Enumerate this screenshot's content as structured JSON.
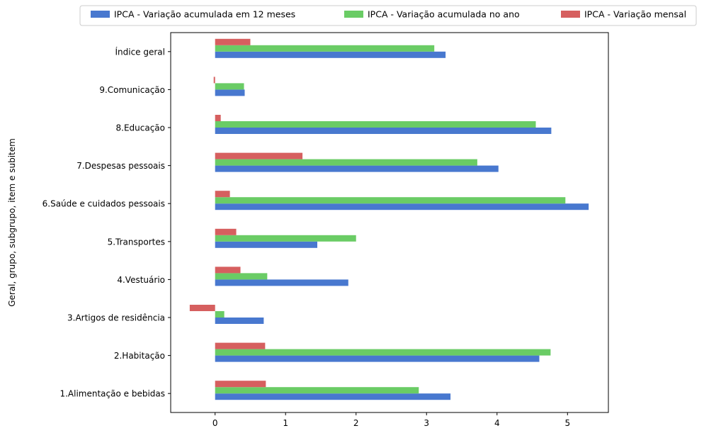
{
  "chart_data": {
    "type": "bar",
    "orientation": "horizontal",
    "ylabel": "Geral, grupo, subgrupo, item e subitem",
    "xlabel": "",
    "xlim": [
      -0.63,
      5.58
    ],
    "xticks": [
      0,
      1,
      2,
      3,
      4,
      5
    ],
    "legend_position": "top",
    "grid": false,
    "categories": [
      "1.Alimentação e bebidas",
      "2.Habitação",
      "3.Artigos de residência",
      "4.Vestuário",
      "5.Transportes",
      "6.Saúde e cuidados pessoais",
      "7.Despesas pessoais",
      "8.Educação",
      "9.Comunicação",
      "Índice geral"
    ],
    "series": [
      {
        "name": "IPCA - Variação acumulada em 12 meses",
        "color": "#4878cf",
        "values": [
          3.34,
          4.6,
          0.69,
          1.89,
          1.45,
          5.3,
          4.02,
          4.77,
          0.42,
          3.27
        ]
      },
      {
        "name": "IPCA - Variação acumulada no ano",
        "color": "#6acc65",
        "values": [
          2.89,
          4.76,
          0.13,
          0.74,
          2.0,
          4.97,
          3.72,
          4.55,
          0.41,
          3.11
        ]
      },
      {
        "name": "IPCA - Variação mensal",
        "color": "#d65f5f",
        "values": [
          0.72,
          0.71,
          -0.36,
          0.36,
          0.3,
          0.21,
          1.24,
          0.08,
          -0.02,
          0.5
        ]
      }
    ]
  }
}
